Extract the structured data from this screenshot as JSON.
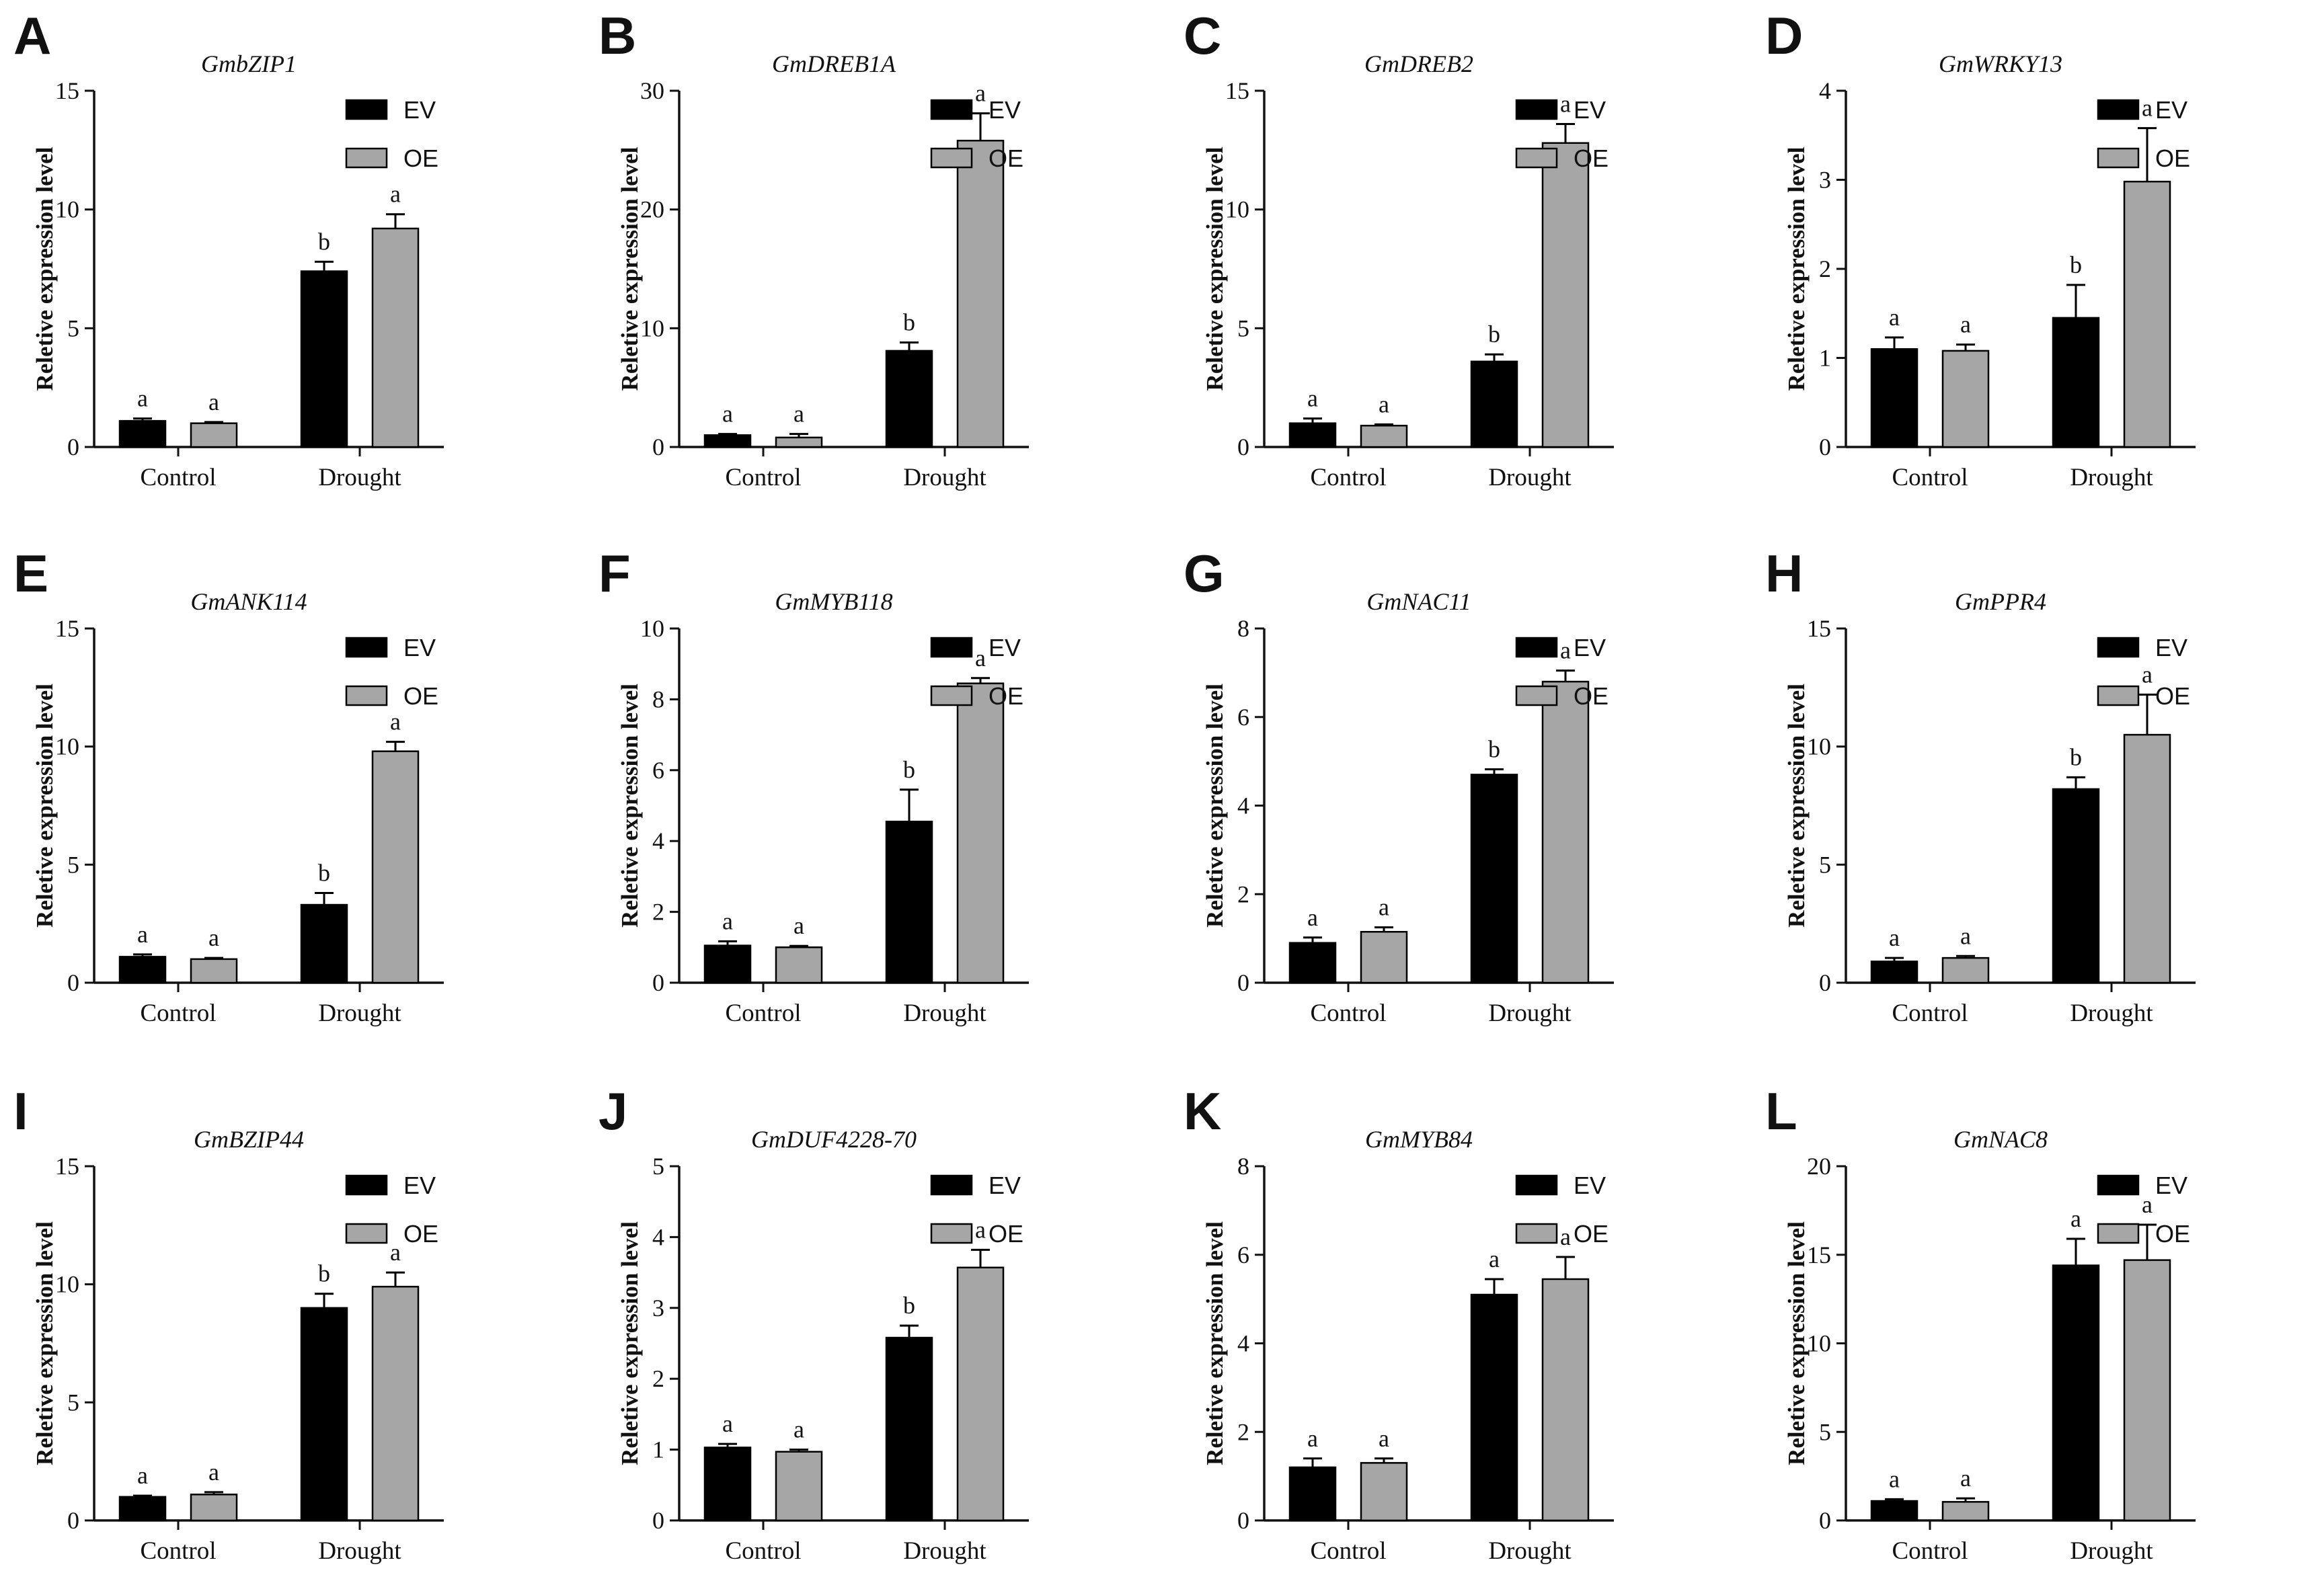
{
  "colors": {
    "EV": "#000000",
    "OE": "#a6a6a6",
    "axis": "#111111"
  },
  "chart_data": [
    {
      "type": "bar",
      "panel": "A",
      "title": "GmbZIP1",
      "ylabel": "Reletive expression level",
      "categories": [
        "Control",
        "Drought"
      ],
      "ylim": [
        0,
        15
      ],
      "yticks": [
        0,
        5,
        10,
        15
      ],
      "legend": [
        "EV",
        "OE"
      ],
      "series": [
        {
          "name": "EV",
          "values": [
            1.1,
            7.4
          ],
          "errors": [
            0.1,
            0.4
          ],
          "labels": [
            "a",
            "b"
          ]
        },
        {
          "name": "OE",
          "values": [
            1.0,
            9.2
          ],
          "errors": [
            0.05,
            0.6
          ],
          "labels": [
            "a",
            "a"
          ]
        }
      ]
    },
    {
      "type": "bar",
      "panel": "B",
      "title": "GmDREB1A",
      "ylabel": "Reletive expression level",
      "categories": [
        "Control",
        "Drought"
      ],
      "ylim": [
        0,
        30
      ],
      "yticks": [
        0,
        10,
        20,
        30
      ],
      "legend": [
        "EV",
        "OE"
      ],
      "series": [
        {
          "name": "EV",
          "values": [
            1.0,
            8.1
          ],
          "errors": [
            0.1,
            0.7
          ],
          "labels": [
            "a",
            "b"
          ]
        },
        {
          "name": "OE",
          "values": [
            0.8,
            25.8
          ],
          "errors": [
            0.3,
            2.3
          ],
          "labels": [
            "a",
            "a"
          ]
        }
      ]
    },
    {
      "type": "bar",
      "panel": "C",
      "title": "GmDREB2",
      "ylabel": "Reletive expression level",
      "categories": [
        "Control",
        "Drought"
      ],
      "ylim": [
        0,
        15
      ],
      "yticks": [
        0,
        5,
        10,
        15
      ],
      "legend": [
        "EV",
        "OE"
      ],
      "series": [
        {
          "name": "EV",
          "values": [
            1.0,
            3.6
          ],
          "errors": [
            0.2,
            0.3
          ],
          "labels": [
            "a",
            "b"
          ]
        },
        {
          "name": "OE",
          "values": [
            0.9,
            12.8
          ],
          "errors": [
            0.05,
            0.8
          ],
          "labels": [
            "a",
            "a"
          ]
        }
      ]
    },
    {
      "type": "bar",
      "panel": "D",
      "title": "GmWRKY13",
      "ylabel": "Reletive expression level",
      "categories": [
        "Control",
        "Drought"
      ],
      "ylim": [
        0,
        4
      ],
      "yticks": [
        0,
        1,
        2,
        3,
        4
      ],
      "legend": [
        "EV",
        "OE"
      ],
      "series": [
        {
          "name": "EV",
          "values": [
            1.1,
            1.45
          ],
          "errors": [
            0.13,
            0.37
          ],
          "labels": [
            "a",
            "b"
          ]
        },
        {
          "name": "OE",
          "values": [
            1.08,
            2.98
          ],
          "errors": [
            0.07,
            0.6
          ],
          "labels": [
            "a",
            "a"
          ]
        }
      ]
    },
    {
      "type": "bar",
      "panel": "E",
      "title": "GmANK114",
      "ylabel": "Reletive expression level",
      "categories": [
        "Control",
        "Drought"
      ],
      "ylim": [
        0,
        15
      ],
      "yticks": [
        0,
        5,
        10,
        15
      ],
      "legend": [
        "EV",
        "OE"
      ],
      "series": [
        {
          "name": "EV",
          "values": [
            1.1,
            3.3
          ],
          "errors": [
            0.1,
            0.5
          ],
          "labels": [
            "a",
            "b"
          ]
        },
        {
          "name": "OE",
          "values": [
            1.0,
            9.8
          ],
          "errors": [
            0.05,
            0.4
          ],
          "labels": [
            "a",
            "a"
          ]
        }
      ]
    },
    {
      "type": "bar",
      "panel": "F",
      "title": "GmMYB118",
      "ylabel": "Reletive expression level",
      "categories": [
        "Control",
        "Drought"
      ],
      "ylim": [
        0,
        10
      ],
      "yticks": [
        0,
        2,
        4,
        6,
        8,
        10
      ],
      "legend": [
        "EV",
        "OE"
      ],
      "series": [
        {
          "name": "EV",
          "values": [
            1.05,
            4.55
          ],
          "errors": [
            0.12,
            0.9
          ],
          "labels": [
            "a",
            "b"
          ]
        },
        {
          "name": "OE",
          "values": [
            1.0,
            8.45
          ],
          "errors": [
            0.04,
            0.15
          ],
          "labels": [
            "a",
            "a"
          ]
        }
      ]
    },
    {
      "type": "bar",
      "panel": "G",
      "title": "GmNAC11",
      "ylabel": "Reletive expression level",
      "categories": [
        "Control",
        "Drought"
      ],
      "ylim": [
        0,
        8
      ],
      "yticks": [
        0,
        2,
        4,
        6,
        8
      ],
      "legend": [
        "EV",
        "OE"
      ],
      "series": [
        {
          "name": "EV",
          "values": [
            0.9,
            4.7
          ],
          "errors": [
            0.12,
            0.12
          ],
          "labels": [
            "a",
            "b"
          ]
        },
        {
          "name": "OE",
          "values": [
            1.15,
            6.8
          ],
          "errors": [
            0.1,
            0.25
          ],
          "labels": [
            "a",
            "a"
          ]
        }
      ]
    },
    {
      "type": "bar",
      "panel": "H",
      "title": "GmPPR4",
      "ylabel": "Reletive expression level",
      "categories": [
        "Control",
        "Drought"
      ],
      "ylim": [
        0,
        15
      ],
      "yticks": [
        0,
        5,
        10,
        15
      ],
      "legend": [
        "EV",
        "OE"
      ],
      "series": [
        {
          "name": "EV",
          "values": [
            0.9,
            8.2
          ],
          "errors": [
            0.15,
            0.5
          ],
          "labels": [
            "a",
            "b"
          ]
        },
        {
          "name": "OE",
          "values": [
            1.05,
            10.5
          ],
          "errors": [
            0.08,
            1.7
          ],
          "labels": [
            "a",
            "a"
          ]
        }
      ]
    },
    {
      "type": "bar",
      "panel": "I",
      "title": "GmBZIP44",
      "ylabel": "Reletive expression level",
      "categories": [
        "Control",
        "Drought"
      ],
      "ylim": [
        0,
        15
      ],
      "yticks": [
        0,
        5,
        10,
        15
      ],
      "legend": [
        "EV",
        "OE"
      ],
      "series": [
        {
          "name": "EV",
          "values": [
            1.0,
            9.0
          ],
          "errors": [
            0.05,
            0.6
          ],
          "labels": [
            "a",
            "b"
          ]
        },
        {
          "name": "OE",
          "values": [
            1.1,
            9.9
          ],
          "errors": [
            0.1,
            0.6
          ],
          "labels": [
            "a",
            "a"
          ]
        }
      ]
    },
    {
      "type": "bar",
      "panel": "J",
      "title": "GmDUF4228-70",
      "ylabel": "Reletive expression level",
      "categories": [
        "Control",
        "Drought"
      ],
      "ylim": [
        0,
        5
      ],
      "yticks": [
        0,
        1,
        2,
        3,
        4,
        5
      ],
      "legend": [
        "EV",
        "OE"
      ],
      "series": [
        {
          "name": "EV",
          "values": [
            1.03,
            2.58
          ],
          "errors": [
            0.05,
            0.17
          ],
          "labels": [
            "a",
            "b"
          ]
        },
        {
          "name": "OE",
          "values": [
            0.97,
            3.57
          ],
          "errors": [
            0.03,
            0.25
          ],
          "labels": [
            "a",
            "a"
          ]
        }
      ]
    },
    {
      "type": "bar",
      "panel": "K",
      "title": "GmMYB84",
      "ylabel": "Reletive expression level",
      "categories": [
        "Control",
        "Drought"
      ],
      "ylim": [
        0,
        8
      ],
      "yticks": [
        0,
        2,
        4,
        6,
        8
      ],
      "legend": [
        "EV",
        "OE"
      ],
      "series": [
        {
          "name": "EV",
          "values": [
            1.2,
            5.1
          ],
          "errors": [
            0.2,
            0.35
          ],
          "labels": [
            "a",
            "a"
          ]
        },
        {
          "name": "OE",
          "values": [
            1.3,
            5.45
          ],
          "errors": [
            0.1,
            0.5
          ],
          "labels": [
            "a",
            "a"
          ]
        }
      ]
    },
    {
      "type": "bar",
      "panel": "L",
      "title": "GmNAC8",
      "ylabel": "Reletive expression level",
      "categories": [
        "Control",
        "Drought"
      ],
      "ylim": [
        0,
        20
      ],
      "yticks": [
        0,
        5,
        10,
        15,
        20
      ],
      "legend": [
        "EV",
        "OE"
      ],
      "series": [
        {
          "name": "EV",
          "values": [
            1.1,
            14.4
          ],
          "errors": [
            0.1,
            1.5
          ],
          "labels": [
            "a",
            "a"
          ]
        },
        {
          "name": "OE",
          "values": [
            1.05,
            14.7
          ],
          "errors": [
            0.2,
            2.0
          ],
          "labels": [
            "a",
            "a"
          ]
        }
      ]
    }
  ]
}
